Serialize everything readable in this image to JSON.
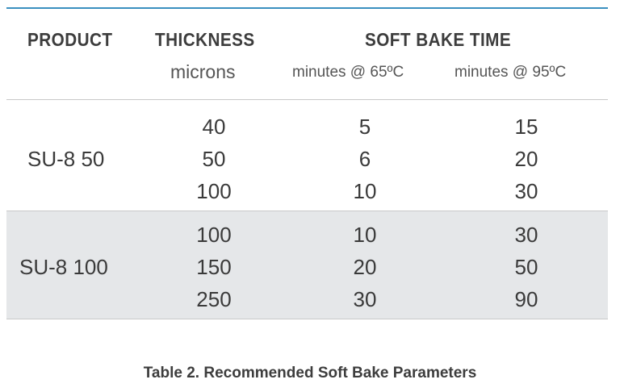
{
  "table": {
    "headers": {
      "product": "PRODUCT",
      "thickness": "THICKNESS",
      "thickness_unit": "microns",
      "soft_bake": "SOFT BAKE TIME",
      "col_65": "minutes @ 65ºC",
      "col_95": "minutes @ 95ºC"
    },
    "groups": [
      {
        "product": "SU-8 50",
        "rows": [
          {
            "thickness": "40",
            "t65": "5",
            "t95": "15"
          },
          {
            "thickness": "50",
            "t65": "6",
            "t95": "20"
          },
          {
            "thickness": "100",
            "t65": "10",
            "t95": "30"
          }
        ]
      },
      {
        "product": "SU-8 100",
        "rows": [
          {
            "thickness": "100",
            "t65": "10",
            "t95": "30"
          },
          {
            "thickness": "150",
            "t65": "20",
            "t95": "50"
          },
          {
            "thickness": "250",
            "t65": "30",
            "t95": "90"
          }
        ]
      }
    ]
  },
  "caption": "Table 2. Recommended Soft Bake Parameters"
}
